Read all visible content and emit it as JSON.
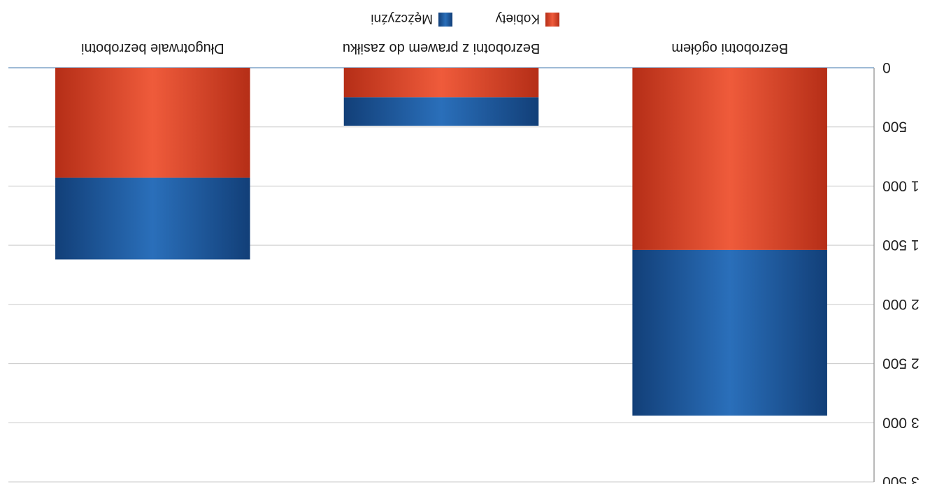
{
  "chart_data": {
    "type": "bar",
    "stacked": true,
    "title": "",
    "xlabel": "",
    "ylabel": "",
    "ylim": [
      0,
      3500
    ],
    "yticks": [
      0,
      500,
      1000,
      1500,
      2000,
      2500,
      3000,
      3500
    ],
    "ytick_labels": [
      "0",
      "500",
      "1 000",
      "1 500",
      "2 000",
      "2 500",
      "3 000",
      "3 500"
    ],
    "grid": true,
    "legend_position": "top",
    "categories": [
      "Bezrobotni ogółem",
      "Bezrobotni z prawem do zasiłku",
      "Długotrwale bezrobotni"
    ],
    "series": [
      {
        "name": "Kobiety",
        "color": "#e2452a",
        "values": [
          1540,
          250,
          930
        ]
      },
      {
        "name": "Mężczyźni",
        "color": "#1f5fa6",
        "values": [
          1400,
          240,
          690
        ]
      }
    ]
  }
}
